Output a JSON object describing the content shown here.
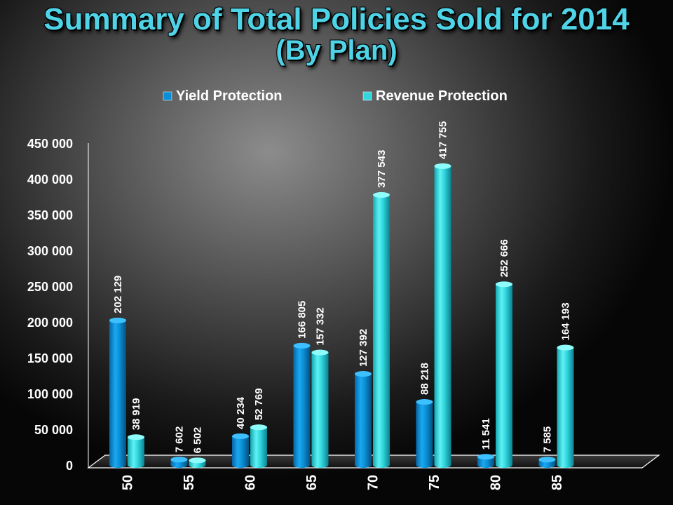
{
  "header": {
    "title": "Summary of Total Policies Sold for 2014",
    "subtitle": "(By Plan)"
  },
  "colors": {
    "title": "#4fd3e6",
    "yield": "#0a8fd6",
    "revenue": "#33d6dc"
  },
  "chart_data": {
    "type": "bar",
    "categories": [
      "50",
      "55",
      "60",
      "65",
      "70",
      "75",
      "80",
      "85"
    ],
    "series": [
      {
        "name": "Yield Protection",
        "color": "#0a8fd6",
        "values": [
          202129,
          7602,
          40234,
          166805,
          127392,
          88218,
          11541,
          7585
        ],
        "labels": [
          "202 129",
          "7 602",
          "40 234",
          "166 805",
          "127 392",
          "88 218",
          "11 541",
          "7 585"
        ]
      },
      {
        "name": "Revenue Protection",
        "color": "#33d6dc",
        "values": [
          38919,
          6502,
          52769,
          157332,
          377543,
          417755,
          252666,
          164193
        ],
        "labels": [
          "38 919",
          "6 502",
          "52 769",
          "157 332",
          "377 543",
          "417 755",
          "252 666",
          "164 193"
        ]
      }
    ],
    "y_ticks": [
      "0",
      "50 000",
      "100 000",
      "150 000",
      "200 000",
      "250 000",
      "300 000",
      "350 000",
      "400 000",
      "450 000"
    ],
    "ylim": [
      0,
      450000
    ],
    "legend_position": "top-center",
    "grid": false
  }
}
